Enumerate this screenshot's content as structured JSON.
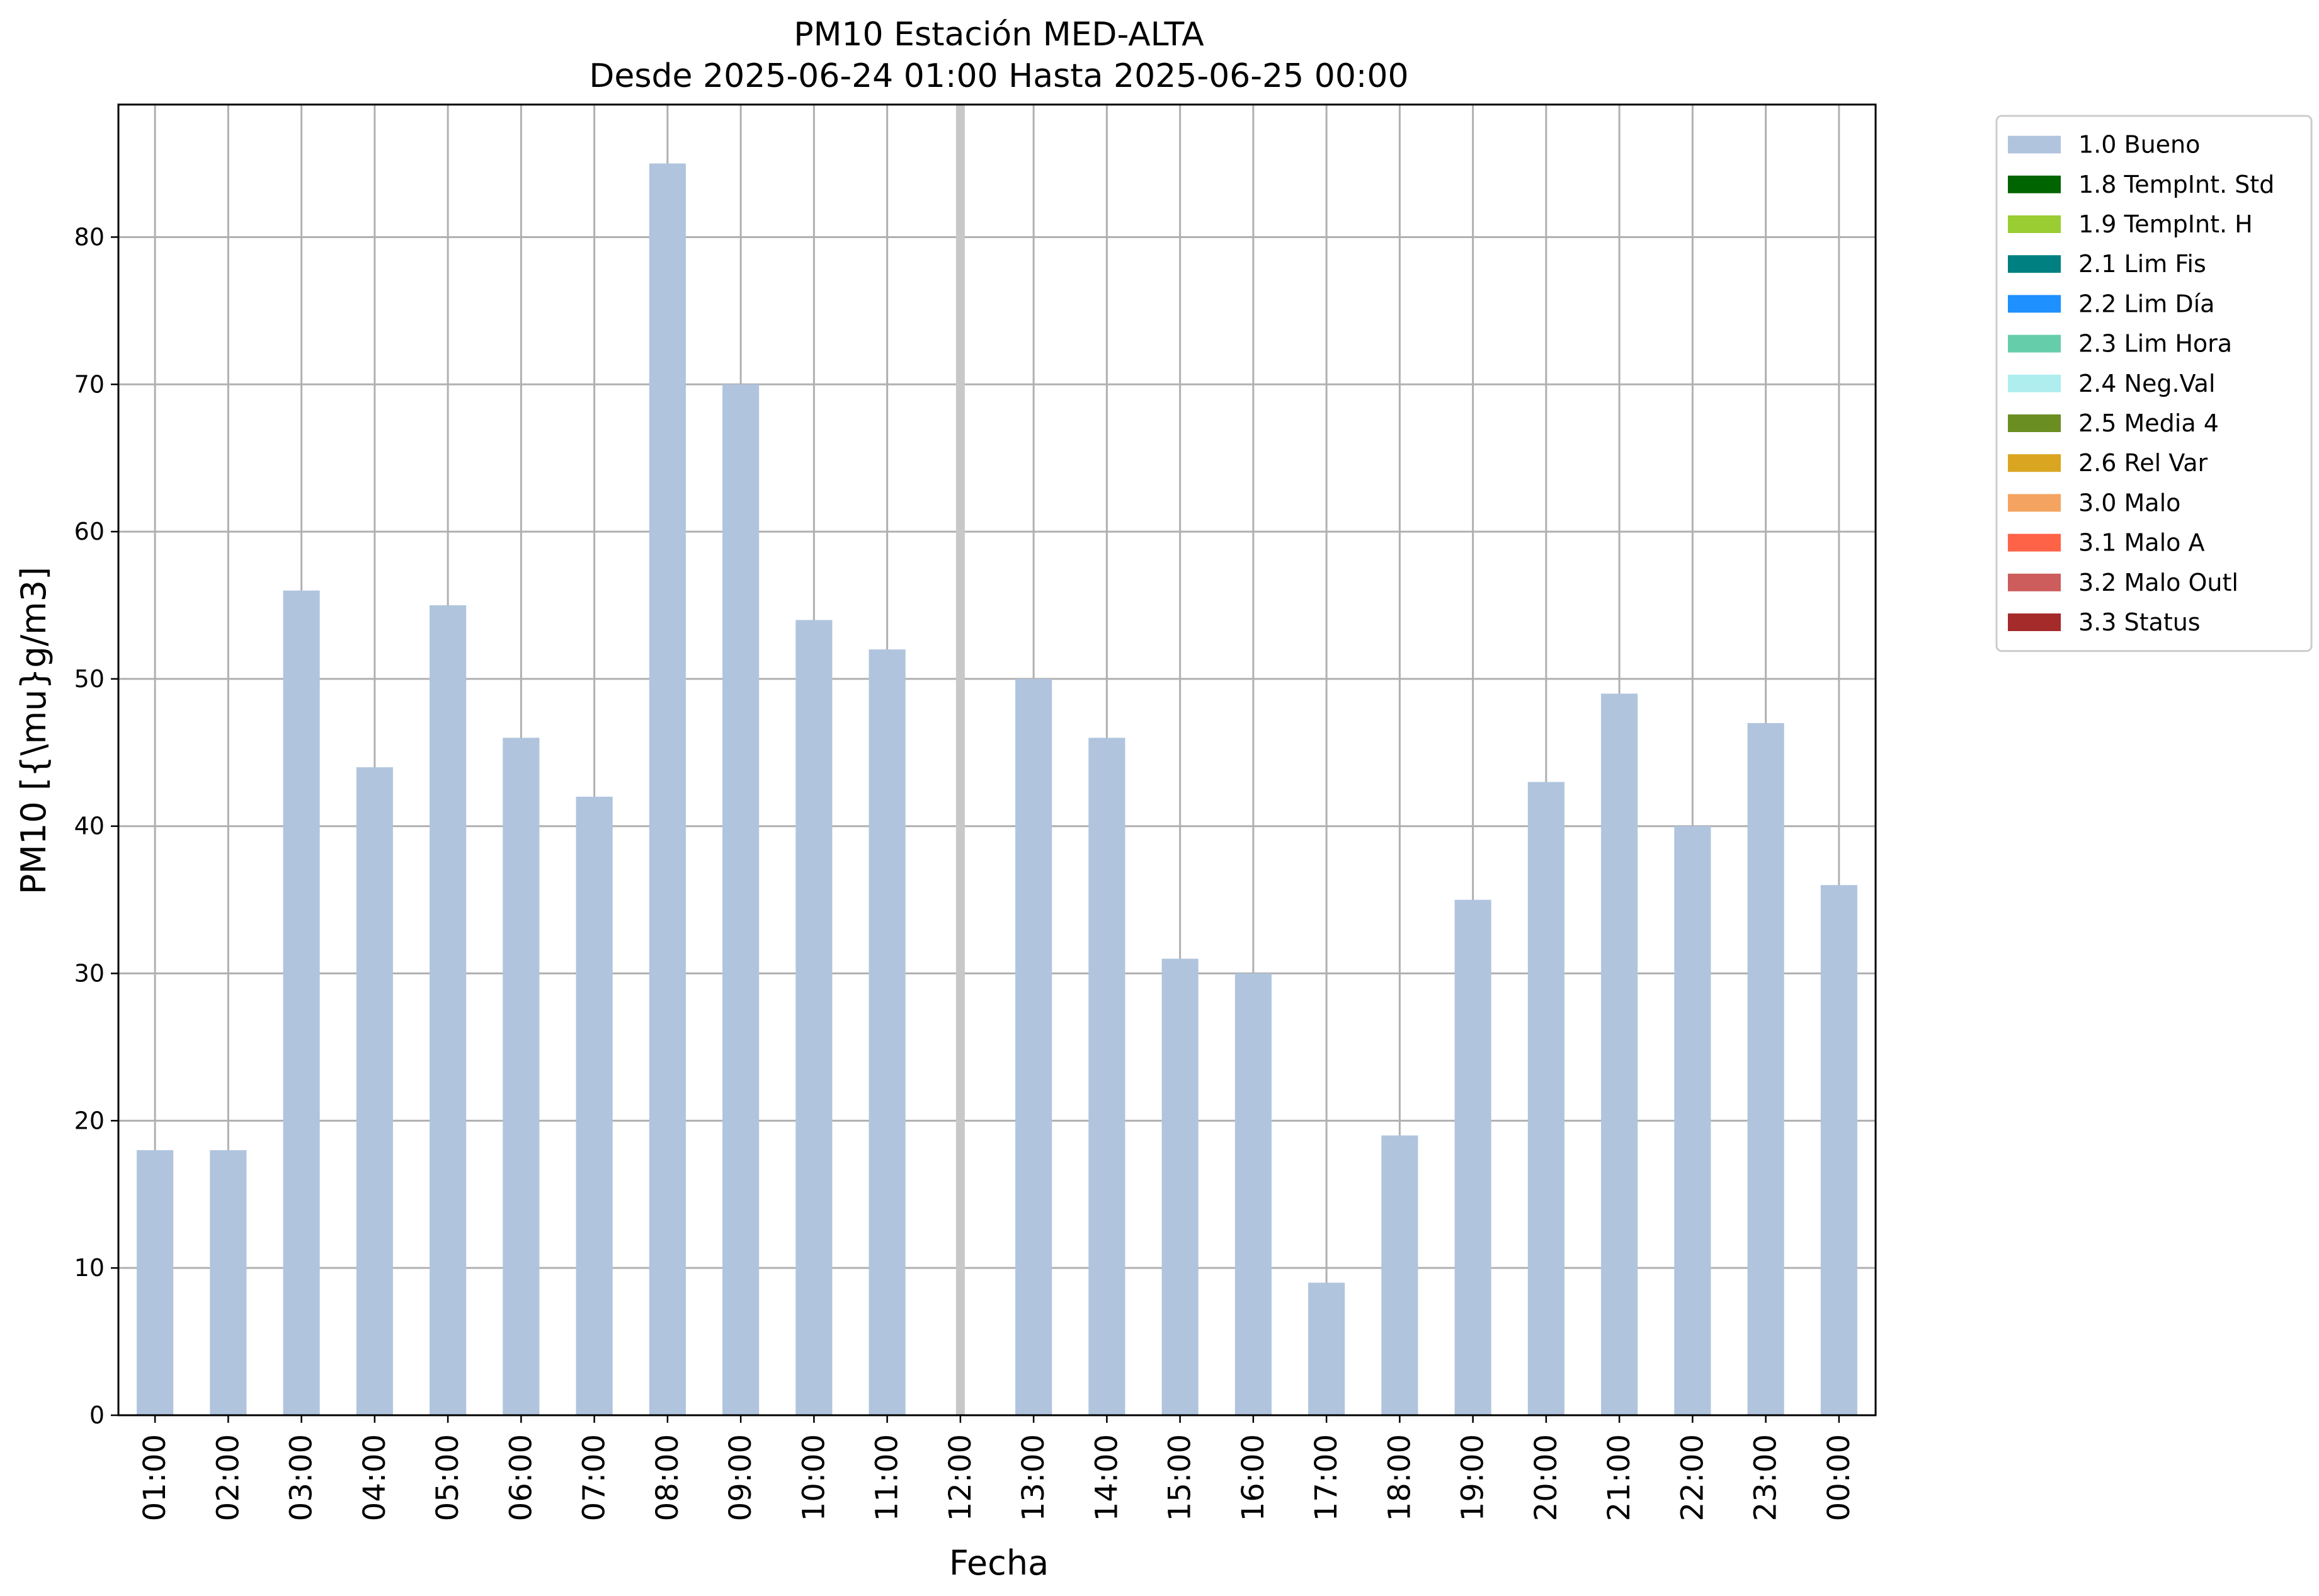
{
  "chart_data": {
    "type": "bar",
    "title": "PM10 Estación MED-ALTA",
    "subtitle": "Desde 2025-06-24 01:00 Hasta 2025-06-25 00:00",
    "xlabel": "Fecha",
    "ylabel": "PM10 [{\\mu}g/m3]",
    "ylim": [
      0,
      89
    ],
    "yticks": [
      0,
      10,
      20,
      30,
      40,
      50,
      60,
      70,
      80
    ],
    "grid": true,
    "legend_position": "outside-top-right",
    "categories": [
      "01:00",
      "02:00",
      "03:00",
      "04:00",
      "05:00",
      "06:00",
      "07:00",
      "08:00",
      "09:00",
      "10:00",
      "11:00",
      "12:00",
      "13:00",
      "14:00",
      "15:00",
      "16:00",
      "17:00",
      "18:00",
      "19:00",
      "20:00",
      "21:00",
      "22:00",
      "23:00",
      "00:00"
    ],
    "series": [
      {
        "name": "1.0 Bueno",
        "color": "#b0c4de",
        "values": [
          18,
          18,
          56,
          44,
          55,
          46,
          42,
          85,
          70,
          54,
          52,
          null,
          50,
          46,
          31,
          30,
          9,
          19,
          35,
          43,
          49,
          40,
          47,
          36
        ]
      }
    ],
    "missing_marker": {
      "category": "12:00",
      "color": "#c8c8c8"
    },
    "legend": [
      {
        "label": "1.0 Bueno",
        "color": "#b0c4de"
      },
      {
        "label": "1.8 TempInt. Std",
        "color": "#006400"
      },
      {
        "label": "1.9 TempInt. H",
        "color": "#9acd32"
      },
      {
        "label": "2.1 Lim Fis",
        "color": "#008080"
      },
      {
        "label": "2.2 Lim Día",
        "color": "#1e90ff"
      },
      {
        "label": "2.3 Lim Hora",
        "color": "#66cdaa"
      },
      {
        "label": "2.4 Neg.Val",
        "color": "#afeeee"
      },
      {
        "label": "2.5 Media 4",
        "color": "#6b8e23"
      },
      {
        "label": "2.6 Rel Var",
        "color": "#daa520"
      },
      {
        "label": "3.0 Malo",
        "color": "#f4a460"
      },
      {
        "label": "3.1 Malo A",
        "color": "#ff6347"
      },
      {
        "label": "3.2 Malo Outl",
        "color": "#cd5c5c"
      },
      {
        "label": "3.3 Status",
        "color": "#a52a2a"
      }
    ]
  }
}
